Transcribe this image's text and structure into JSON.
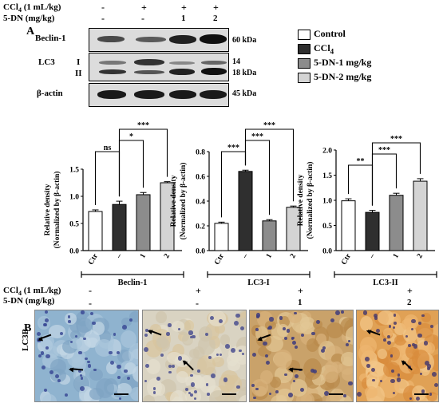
{
  "top_header": {
    "ccl4_label": "CCl",
    "ccl4_sub": "4",
    "ccl4_unit": " (1 mL/kg)",
    "dn_label": "5-DN (mg/kg)",
    "ccl4_marks": [
      "-",
      "+",
      "+",
      "+"
    ],
    "dn_marks": [
      "-",
      "-",
      "1",
      "2"
    ]
  },
  "panel_a": {
    "label": "A",
    "blots": [
      {
        "name": "Beclin-1",
        "kda": "60 kDa"
      },
      {
        "name": "LC3",
        "roman1": "I",
        "roman2": "II",
        "kda1": "14",
        "kda2": "18 kDa"
      },
      {
        "name": "β-actin",
        "kda": "45 kDa"
      }
    ]
  },
  "legend": {
    "items": [
      {
        "label": "Control",
        "color": "#ffffff"
      },
      {
        "label": "CCl",
        "sub": "4",
        "color": "#2f2f2f"
      },
      {
        "label": "5-DN-1 mg/kg",
        "color": "#8c8c8c"
      },
      {
        "label": "5-DN-2 mg/kg",
        "color": "#d4d4d4"
      }
    ]
  },
  "chart_data": [
    {
      "type": "bar",
      "categories": [
        "Ctr",
        "–",
        "1",
        "2"
      ],
      "values": [
        0.72,
        0.85,
        1.03,
        1.25
      ],
      "errors": [
        0.03,
        0.06,
        0.04,
        0.02
      ],
      "colors": [
        "#ffffff",
        "#2f2f2f",
        "#8c8c8c",
        "#d4d4d4"
      ],
      "ylabel": "Relative density",
      "ylabel2": "(Normalized by β-actin)",
      "yticks": [
        0.0,
        0.5,
        1.0,
        1.5
      ],
      "ylim": [
        0,
        1.5
      ],
      "xlabel": "Beclin-1",
      "sig": [
        {
          "from": 0,
          "to": 1,
          "label": "ns",
          "level": 1
        },
        {
          "from": 1,
          "to": 2,
          "label": "*",
          "level": 2
        },
        {
          "from": 1,
          "to": 3,
          "label": "***",
          "level": 3
        }
      ]
    },
    {
      "type": "bar",
      "categories": [
        "Ctr",
        "–",
        "1",
        "2"
      ],
      "values": [
        0.22,
        0.64,
        0.24,
        0.35
      ],
      "errors": [
        0.01,
        0.01,
        0.01,
        0.01
      ],
      "colors": [
        "#ffffff",
        "#2f2f2f",
        "#8c8c8c",
        "#d4d4d4"
      ],
      "ylabel": "Relative density",
      "ylabel2": "(Normalized by β-actin)",
      "yticks": [
        0.0,
        0.2,
        0.4,
        0.6,
        0.8
      ],
      "ylim": [
        0,
        0.8
      ],
      "xlabel": "LC3-I",
      "sig": [
        {
          "from": 0,
          "to": 1,
          "label": "***",
          "level": 1
        },
        {
          "from": 1,
          "to": 2,
          "label": "***",
          "level": 2
        },
        {
          "from": 1,
          "to": 3,
          "label": "***",
          "level": 3
        }
      ]
    },
    {
      "type": "bar",
      "categories": [
        "Ctr",
        "–",
        "1",
        "2"
      ],
      "values": [
        0.99,
        0.76,
        1.1,
        1.38
      ],
      "errors": [
        0.04,
        0.04,
        0.04,
        0.05
      ],
      "colors": [
        "#ffffff",
        "#2f2f2f",
        "#8c8c8c",
        "#d4d4d4"
      ],
      "ylabel": "Relative density",
      "ylabel2": "(Normalized by β-actin)",
      "yticks": [
        0.0,
        0.5,
        1.0,
        1.5,
        2.0
      ],
      "ylim": [
        0,
        2.0
      ],
      "xlabel": "LC3-II",
      "sig": [
        {
          "from": 0,
          "to": 1,
          "label": "**",
          "level": 1
        },
        {
          "from": 1,
          "to": 2,
          "label": "***",
          "level": 2
        },
        {
          "from": 1,
          "to": 3,
          "label": "***",
          "level": 3
        }
      ]
    }
  ],
  "panel_b": {
    "label": "B",
    "stain_label": "LC3B",
    "ccl4_marks": [
      "-",
      "+",
      "+",
      "+"
    ],
    "dn_marks": [
      "-",
      "-",
      "1",
      "2"
    ]
  }
}
